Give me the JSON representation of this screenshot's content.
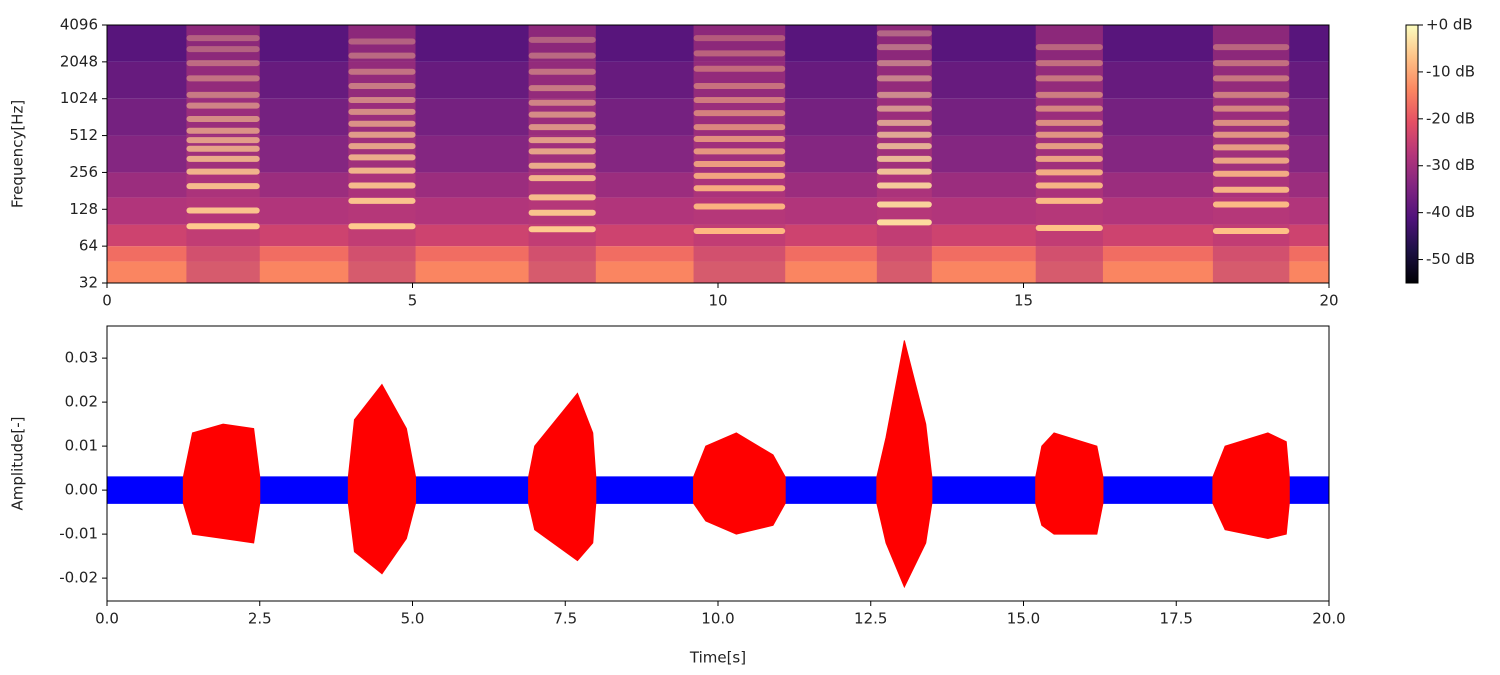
{
  "chart_data": [
    {
      "type": "spectrogram",
      "ylabel": "Frequency[Hz]",
      "xlim": [
        0,
        20
      ],
      "xticks": [
        0,
        5,
        10,
        15,
        20
      ],
      "ylim": [
        32,
        4096
      ],
      "yscale": "log",
      "yticks": [
        32,
        64,
        128,
        256,
        512,
        1024,
        2048,
        4096
      ],
      "colormap": [
        "#000004",
        "#1c1044",
        "#4f127b",
        "#812581",
        "#b5367a",
        "#e55064",
        "#fb8761",
        "#fec287",
        "#fcfdbf"
      ],
      "colorbar": {
        "lim": [
          -55,
          0
        ],
        "ticks": [
          {
            "value": 0,
            "label": "+0 dB"
          },
          {
            "value": -10,
            "label": "-10 dB"
          },
          {
            "value": -20,
            "label": "-20 dB"
          },
          {
            "value": -30,
            "label": "-30 dB"
          },
          {
            "value": -40,
            "label": "-40 dB"
          },
          {
            "value": -50,
            "label": "-50 dB"
          }
        ]
      },
      "bands": {
        "freq": [
          32,
          48,
          64,
          96,
          160,
          256,
          512,
          1024,
          2048,
          4096
        ],
        "levels": [
          -14,
          -17,
          -24,
          -28,
          -31,
          -34,
          -36,
          -38,
          -40
        ]
      },
      "event_level": -27,
      "events": [
        {
          "start": 1.3,
          "end": 2.5,
          "level": -6,
          "harmonics": [
            93,
            125,
            198,
            260,
            330,
            400,
            470,
            560,
            700,
            900,
            1100,
            1500,
            2000,
            2600,
            3200
          ]
        },
        {
          "start": 3.95,
          "end": 5.05,
          "level": -6,
          "harmonics": [
            93,
            150,
            200,
            265,
            340,
            420,
            520,
            640,
            800,
            1000,
            1300,
            1700,
            2300,
            3000
          ]
        },
        {
          "start": 6.9,
          "end": 8.0,
          "level": -6,
          "harmonics": [
            88,
            120,
            160,
            230,
            290,
            380,
            470,
            600,
            760,
            950,
            1250,
            1700,
            2300,
            3100
          ]
        },
        {
          "start": 9.6,
          "end": 11.1,
          "level": -8,
          "harmonics": [
            85,
            135,
            190,
            240,
            300,
            380,
            480,
            600,
            780,
            1000,
            1300,
            1800,
            2400,
            3200
          ]
        },
        {
          "start": 12.6,
          "end": 13.5,
          "level": -4,
          "harmonics": [
            100,
            140,
            200,
            260,
            330,
            420,
            520,
            650,
            850,
            1100,
            1500,
            2000,
            2700,
            3500
          ]
        },
        {
          "start": 15.2,
          "end": 16.3,
          "level": -7,
          "harmonics": [
            90,
            150,
            200,
            256,
            330,
            420,
            520,
            650,
            850,
            1100,
            1500,
            2000,
            2700
          ]
        },
        {
          "start": 18.1,
          "end": 19.35,
          "level": -7,
          "harmonics": [
            85,
            140,
            185,
            250,
            320,
            410,
            520,
            650,
            850,
            1100,
            1500,
            2000,
            2700
          ]
        }
      ]
    },
    {
      "type": "envelope",
      "xlabel": "Time[s]",
      "ylabel": "Amplitude[-]",
      "xlim": [
        0,
        20
      ],
      "xticks": [
        {
          "value": 0,
          "label": "0.0"
        },
        2.5,
        {
          "value": 5,
          "label": "5.0"
        },
        7.5,
        {
          "value": 10,
          "label": "10.0"
        },
        12.5,
        {
          "value": 15,
          "label": "15.0"
        },
        17.5,
        {
          "value": 20,
          "label": "20.0"
        }
      ],
      "ylim": [
        -0.0252,
        0.0373
      ],
      "yticks": [
        -0.02,
        -0.01,
        {
          "value": 0,
          "label": "0.00"
        },
        0.01,
        0.02,
        0.03
      ],
      "series": [
        {
          "color": "#0000ff",
          "x": [
            0,
            20
          ],
          "upper": [
            0.003,
            0.003
          ],
          "lower": [
            -0.003,
            -0.003
          ]
        },
        {
          "color": "#ff0000",
          "x": [
            1.25,
            1.4,
            1.9,
            2.4,
            2.5
          ],
          "upper": [
            0.003,
            0.013,
            0.015,
            0.014,
            0.003
          ],
          "lower": [
            -0.003,
            -0.01,
            -0.011,
            -0.012,
            -0.003
          ]
        },
        {
          "color": "#ff0000",
          "x": [
            3.95,
            4.05,
            4.5,
            4.9,
            5.05
          ],
          "upper": [
            0.003,
            0.016,
            0.024,
            0.014,
            0.003
          ],
          "lower": [
            -0.003,
            -0.014,
            -0.019,
            -0.011,
            -0.003
          ]
        },
        {
          "color": "#ff0000",
          "x": [
            6.9,
            7.0,
            7.7,
            7.95,
            8.0
          ],
          "upper": [
            0.003,
            0.01,
            0.022,
            0.013,
            0.003
          ],
          "lower": [
            -0.003,
            -0.009,
            -0.016,
            -0.012,
            -0.003
          ]
        },
        {
          "color": "#ff0000",
          "x": [
            9.6,
            9.8,
            10.3,
            10.9,
            11.1
          ],
          "upper": [
            0.003,
            0.01,
            0.013,
            0.008,
            0.003
          ],
          "lower": [
            -0.003,
            -0.007,
            -0.01,
            -0.008,
            -0.003
          ]
        },
        {
          "color": "#ff0000",
          "x": [
            12.6,
            12.75,
            13.05,
            13.4,
            13.5
          ],
          "upper": [
            0.003,
            0.012,
            0.034,
            0.015,
            0.003
          ],
          "lower": [
            -0.003,
            -0.012,
            -0.022,
            -0.012,
            -0.003
          ]
        },
        {
          "color": "#ff0000",
          "x": [
            15.2,
            15.3,
            15.5,
            16.2,
            16.3
          ],
          "upper": [
            0.003,
            0.01,
            0.013,
            0.01,
            0.003
          ],
          "lower": [
            -0.003,
            -0.008,
            -0.01,
            -0.01,
            -0.003
          ]
        },
        {
          "color": "#ff0000",
          "x": [
            18.1,
            18.3,
            19.0,
            19.3,
            19.35
          ],
          "upper": [
            0.003,
            0.01,
            0.013,
            0.011,
            0.003
          ],
          "lower": [
            -0.003,
            -0.009,
            -0.011,
            -0.01,
            -0.003
          ]
        }
      ]
    }
  ]
}
